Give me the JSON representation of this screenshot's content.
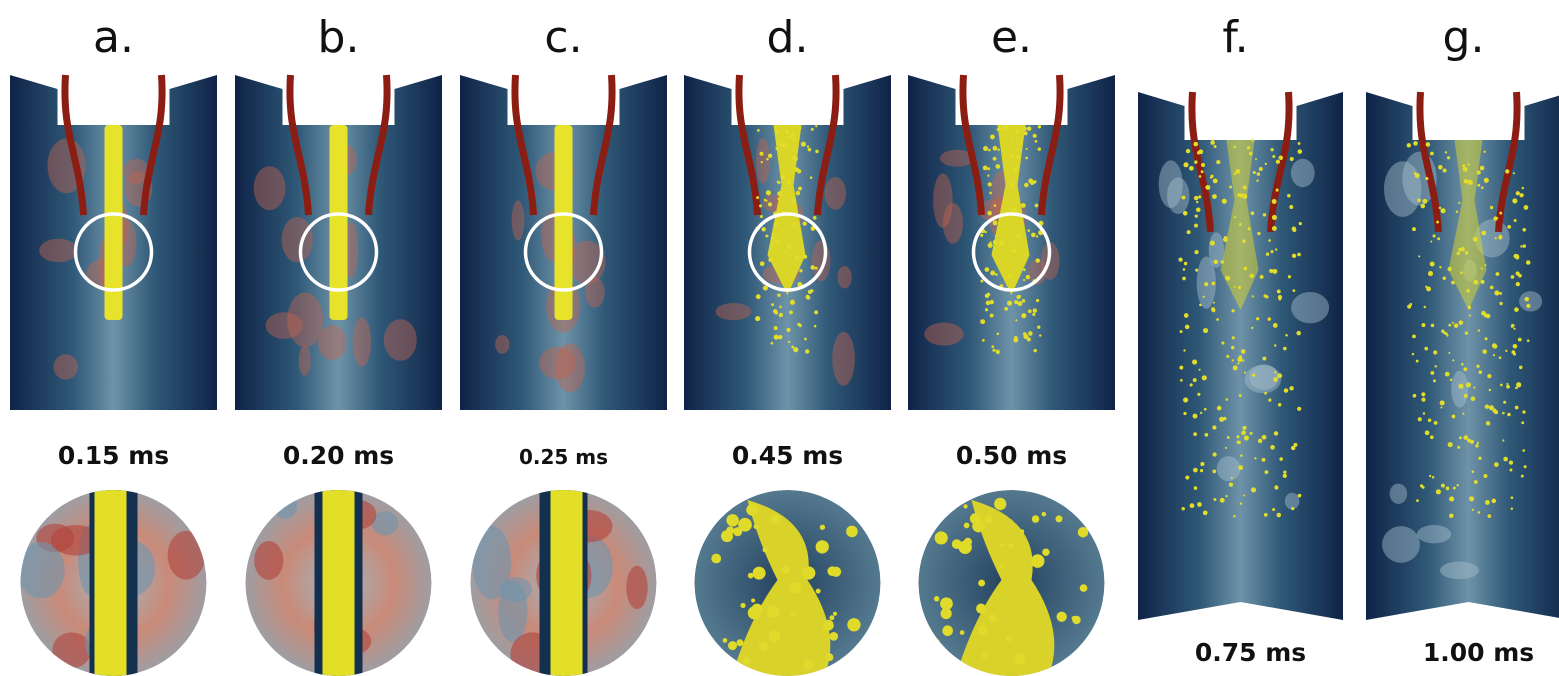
{
  "panels": [
    {
      "label": "a.",
      "time": "0.15 ms"
    },
    {
      "label": "b.",
      "time": "0.20 ms"
    },
    {
      "label": "c.",
      "time": "0.25 ms"
    },
    {
      "label": "d.",
      "time": "0.45 ms"
    },
    {
      "label": "e.",
      "time": "0.50 ms"
    },
    {
      "label": "f.",
      "time": "0.75 ms"
    },
    {
      "label": "g.",
      "time": "1.00 ms"
    }
  ]
}
